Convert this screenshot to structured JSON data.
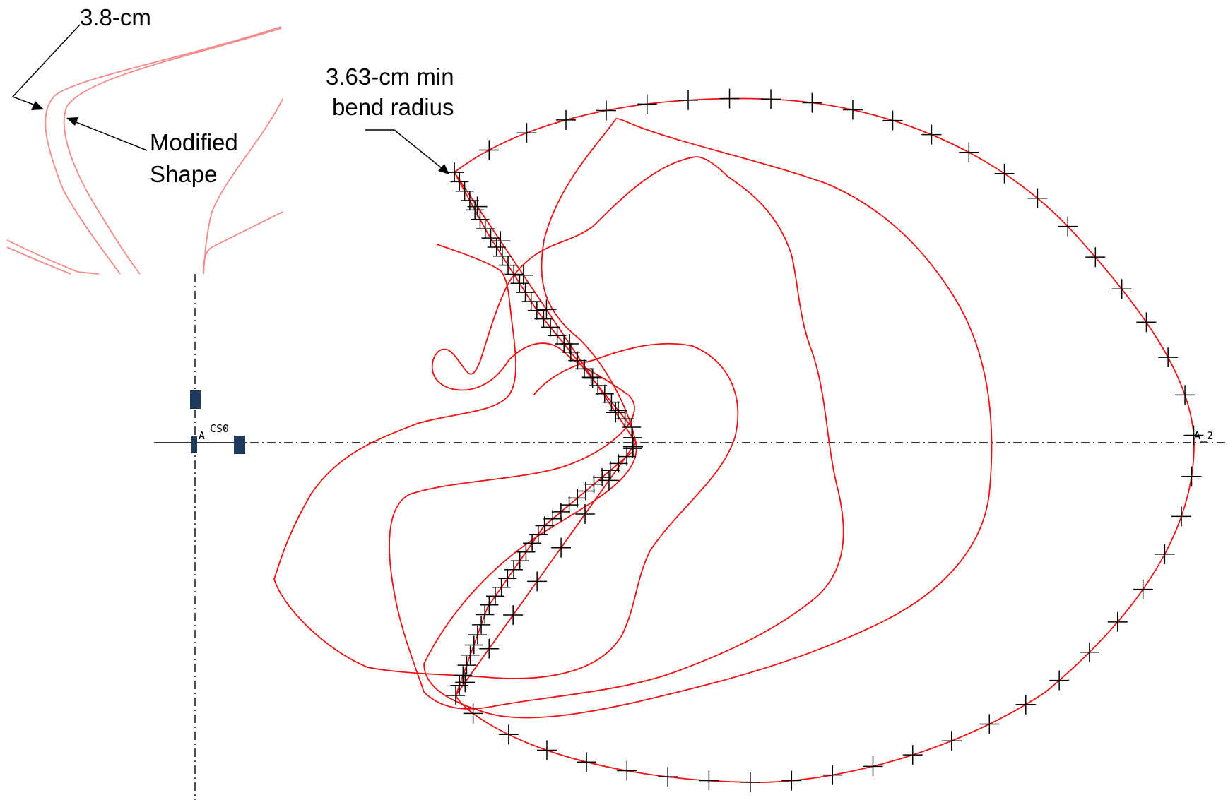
{
  "callouts": {
    "radius_label": "3.8-cm",
    "modified_shape_line1": "Modified",
    "modified_shape_line2": "Shape",
    "min_bend_line1": "3.63-cm min",
    "min_bend_line2": "bend radius"
  },
  "cad_tags": {
    "origin_tag": "A",
    "csys_tag": "CS0",
    "end_tag": "A_2"
  },
  "colors": {
    "curve": "#ee1111",
    "inset_curve": "#f28a8a",
    "marks": "#000000",
    "marker_fill": "#1f3a5f"
  }
}
